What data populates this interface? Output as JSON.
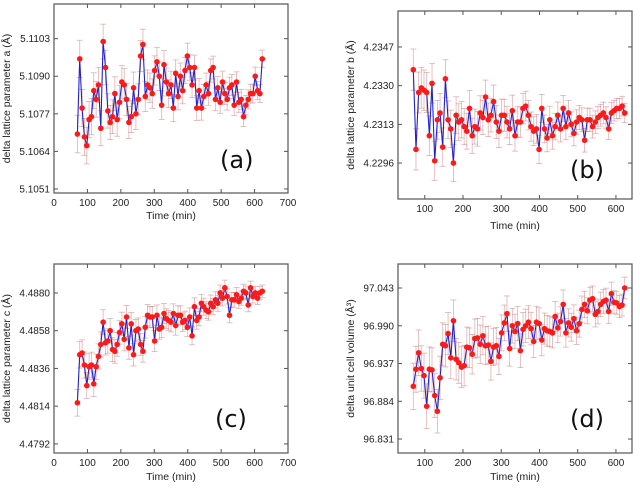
{
  "colors": {
    "line": "#2222cc",
    "marker": "#ff1a1a",
    "errorbar": "#c97f7f",
    "axis": "#555555"
  },
  "chart_data": [
    {
      "type": "scatter-line",
      "panel_label": "(a)",
      "xlabel": "Time (min)",
      "ylabel": "delta lattice parameter a (Å)",
      "xlim": [
        0,
        700
      ],
      "ylim": [
        5.10496,
        5.1115
      ],
      "xticks": [
        "0",
        "100",
        "200",
        "300",
        "400",
        "500",
        "600",
        "700"
      ],
      "yticks": [
        "5.1051",
        "5.1064",
        "5.1077",
        "5.1090",
        "5.1103"
      ],
      "typical_yerr": 0.0005,
      "x": [
        70,
        77,
        84,
        91,
        98,
        105,
        112,
        119,
        126,
        133,
        140,
        147,
        154,
        161,
        168,
        175,
        182,
        189,
        196,
        203,
        210,
        217,
        224,
        231,
        238,
        245,
        252,
        259,
        266,
        273,
        280,
        287,
        294,
        301,
        308,
        315,
        322,
        329,
        336,
        343,
        350,
        357,
        364,
        371,
        378,
        385,
        392,
        399,
        406,
        413,
        420,
        427,
        434,
        441,
        448,
        455,
        462,
        469,
        476,
        483,
        490,
        497,
        504,
        511,
        518,
        525,
        532,
        539,
        546,
        553,
        560,
        567,
        574,
        581,
        588,
        595,
        602,
        609,
        616,
        623
      ],
      "y": [
        5.107,
        5.1096,
        5.1079,
        5.1069,
        5.1066,
        5.1075,
        5.1076,
        5.1085,
        5.1082,
        5.1087,
        5.1072,
        5.1102,
        5.1093,
        5.1078,
        5.1074,
        5.1076,
        5.1084,
        5.1075,
        5.1081,
        5.1088,
        5.1087,
        5.1082,
        5.1074,
        5.1076,
        5.1086,
        5.1077,
        5.1082,
        5.1097,
        5.1101,
        5.1083,
        5.1087,
        5.1086,
        5.1084,
        5.1092,
        5.1095,
        5.109,
        5.108,
        5.1094,
        5.1088,
        5.1084,
        5.1087,
        5.1079,
        5.1091,
        5.1083,
        5.109,
        5.1085,
        5.1092,
        5.1097,
        5.1093,
        5.1087,
        5.1093,
        5.1079,
        5.1085,
        5.1079,
        5.1083,
        5.1087,
        5.1084,
        5.1092,
        5.1093,
        5.1082,
        5.1086,
        5.1081,
        5.1088,
        5.1084,
        5.1082,
        5.1086,
        5.1087,
        5.108,
        5.1088,
        5.1081,
        5.1082,
        5.1076,
        5.108,
        5.1082,
        5.1084,
        5.1084,
        5.109,
        5.1085,
        5.1084,
        5.1096
      ]
    },
    {
      "type": "scatter-line",
      "panel_label": "(b)",
      "xlabel": "Time (min)",
      "ylabel": "delta lattice parameter b (Å)",
      "xlim": [
        30,
        642
      ],
      "ylim": [
        4.22802,
        4.23628
      ],
      "xticks": [
        "100",
        "200",
        "300",
        "400",
        "500",
        "600"
      ],
      "yticks": [
        "4.2296",
        "4.2313",
        "4.2330",
        "4.2347"
      ],
      "typical_yerr": 0.0007,
      "x": [
        70,
        77,
        84,
        91,
        98,
        105,
        112,
        119,
        126,
        133,
        140,
        147,
        154,
        161,
        168,
        175,
        182,
        189,
        196,
        203,
        210,
        217,
        224,
        231,
        238,
        245,
        252,
        259,
        266,
        273,
        280,
        287,
        294,
        301,
        308,
        315,
        322,
        329,
        336,
        343,
        350,
        357,
        364,
        371,
        378,
        385,
        392,
        399,
        406,
        413,
        420,
        427,
        434,
        441,
        448,
        455,
        462,
        469,
        476,
        483,
        490,
        497,
        504,
        511,
        518,
        525,
        532,
        539,
        546,
        553,
        560,
        567,
        574,
        581,
        588,
        595,
        602,
        609,
        616,
        623
      ],
      "y": [
        4.2337,
        4.2302,
        4.2327,
        4.2329,
        4.2328,
        4.2327,
        4.2308,
        4.2331,
        4.2297,
        4.2315,
        4.2318,
        4.2303,
        4.2333,
        4.2315,
        4.2311,
        4.2296,
        4.2317,
        4.2314,
        4.2315,
        4.2312,
        4.231,
        4.232,
        4.2308,
        4.2312,
        4.2311,
        4.2318,
        4.2316,
        4.2325,
        4.2315,
        4.2317,
        4.2323,
        4.2314,
        4.231,
        4.2317,
        4.2317,
        4.2314,
        4.2311,
        4.2319,
        4.2308,
        4.2314,
        4.2314,
        4.232,
        4.2321,
        4.2317,
        4.2312,
        4.231,
        4.2311,
        4.2302,
        4.232,
        4.2311,
        4.2307,
        4.2315,
        4.2308,
        4.2312,
        4.2317,
        4.2311,
        4.232,
        4.2312,
        4.2318,
        4.2313,
        4.2309,
        4.2314,
        4.2316,
        4.2315,
        4.2306,
        4.2315,
        4.2315,
        4.2312,
        4.2314,
        4.2316,
        4.2317,
        4.2318,
        4.2316,
        4.2311,
        4.2318,
        4.2319,
        4.232,
        4.232,
        4.2321,
        4.2318
      ]
    },
    {
      "type": "scatter-line",
      "panel_label": "(c)",
      "xlabel": "Time (min)",
      "ylabel": "delta lattice parameter c (Å)",
      "xlim": [
        0,
        700
      ],
      "ylim": [
        4.47867,
        4.48969
      ],
      "xticks": [
        "0",
        "100",
        "200",
        "300",
        "400",
        "500",
        "600",
        "700"
      ],
      "yticks": [
        "4.4792",
        "4.4814",
        "4.4836",
        "4.4858",
        "4.4880"
      ],
      "typical_yerr": 0.0006,
      "x": [
        70,
        77,
        84,
        91,
        98,
        105,
        112,
        119,
        126,
        133,
        140,
        147,
        154,
        161,
        168,
        175,
        182,
        189,
        196,
        203,
        210,
        217,
        224,
        231,
        238,
        245,
        252,
        259,
        266,
        273,
        280,
        287,
        294,
        301,
        308,
        315,
        322,
        329,
        336,
        343,
        350,
        357,
        364,
        371,
        378,
        385,
        392,
        399,
        406,
        413,
        420,
        427,
        434,
        441,
        448,
        455,
        462,
        469,
        476,
        483,
        490,
        497,
        504,
        511,
        518,
        525,
        532,
        539,
        546,
        553,
        560,
        567,
        574,
        581,
        588,
        595,
        602,
        609,
        616,
        623
      ],
      "y": [
        4.4816,
        4.4844,
        4.4845,
        4.4838,
        4.4826,
        4.4837,
        4.4838,
        4.4827,
        4.4837,
        4.4843,
        4.485,
        4.4863,
        4.4851,
        4.4852,
        4.4858,
        4.4847,
        4.4846,
        4.485,
        4.4857,
        4.4862,
        4.4853,
        4.4866,
        4.4848,
        4.4862,
        4.4844,
        4.4858,
        4.4859,
        4.485,
        4.4846,
        4.486,
        4.4867,
        4.4866,
        4.4866,
        4.4852,
        4.4867,
        4.4859,
        4.486,
        4.4868,
        4.4865,
        4.4864,
        4.4863,
        4.4868,
        4.4861,
        4.4867,
        4.4867,
        4.4863,
        4.4864,
        4.486,
        4.4866,
        4.4855,
        4.4872,
        4.4864,
        4.4866,
        4.4874,
        4.4872,
        4.487,
        4.4869,
        4.4874,
        4.4872,
        4.4876,
        4.4874,
        4.488,
        4.4877,
        4.4883,
        4.4878,
        4.4867,
        4.4876,
        4.4876,
        4.4879,
        4.4875,
        4.4877,
        4.4881,
        4.488,
        4.4873,
        4.4883,
        4.4878,
        4.488,
        4.4877,
        4.488,
        4.4881
      ]
    },
    {
      "type": "scatter-line",
      "panel_label": "(d)",
      "xlabel": "Time (min)",
      "ylabel": "delta unit cell volume (Å³)",
      "xlim": [
        30,
        642
      ],
      "ylim": [
        96.8114,
        97.0767
      ],
      "xticks": [
        "100",
        "200",
        "300",
        "400",
        "500",
        "600"
      ],
      "yticks": [
        "96.831",
        "96.884",
        "96.937",
        "96.990",
        "97.043"
      ],
      "typical_yerr": 0.025,
      "x": [
        70,
        77,
        84,
        91,
        98,
        105,
        112,
        119,
        126,
        133,
        140,
        147,
        154,
        161,
        168,
        175,
        182,
        189,
        196,
        203,
        210,
        217,
        224,
        231,
        238,
        245,
        252,
        259,
        266,
        273,
        280,
        287,
        294,
        301,
        308,
        315,
        322,
        329,
        336,
        343,
        350,
        357,
        364,
        371,
        378,
        385,
        392,
        399,
        406,
        413,
        420,
        427,
        434,
        441,
        448,
        455,
        462,
        469,
        476,
        483,
        490,
        497,
        504,
        511,
        518,
        525,
        532,
        539,
        546,
        553,
        560,
        567,
        574,
        581,
        588,
        595,
        602,
        609,
        616,
        623
      ],
      "y": [
        96.905,
        96.929,
        96.952,
        96.93,
        96.92,
        96.877,
        96.929,
        96.928,
        96.892,
        96.87,
        96.917,
        96.964,
        96.962,
        96.979,
        96.945,
        96.997,
        96.943,
        96.938,
        96.932,
        96.934,
        96.96,
        96.959,
        96.95,
        96.972,
        96.973,
        96.964,
        96.976,
        96.962,
        96.963,
        96.94,
        96.96,
        96.962,
        96.947,
        96.98,
        96.994,
        97.007,
        96.958,
        96.99,
        96.982,
        96.993,
        96.955,
        96.985,
        96.99,
        96.995,
        96.986,
        96.968,
        96.995,
        96.993,
        96.97,
        96.986,
        96.983,
        96.982,
        96.98,
        97.003,
        96.987,
        96.996,
        97.02,
        96.98,
        96.994,
        96.988,
        97.0,
        96.983,
        96.993,
        97.013,
        97.02,
        97.011,
        97.026,
        97.028,
        97.006,
        97.01,
        97.02,
        97.024,
        97.026,
        97.01,
        97.035,
        97.023,
        97.022,
        97.017,
        97.019,
        97.043
      ]
    }
  ]
}
